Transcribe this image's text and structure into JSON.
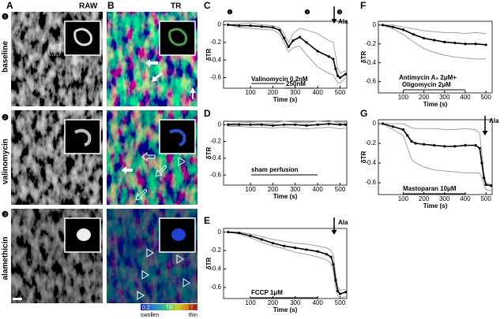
{
  "panel_labels": [
    "A",
    "B",
    "C",
    "D",
    "E",
    "F",
    "G"
  ],
  "column_headers": [
    "RAW",
    "TR"
  ],
  "row_labels": [
    {
      "marker": "❶",
      "label": "baseline"
    },
    {
      "marker": "❷",
      "label": "valinomycin"
    },
    {
      "marker": "❸",
      "label": "alamethicin"
    }
  ],
  "colorbar": {
    "min": 0.2,
    "mid": "TR",
    "max": 1.2,
    "low_label": "swollen",
    "high_label": "thin"
  },
  "chart_data": [
    {
      "type": "line",
      "xlabel": "Time (s)",
      "ylabel": "δTR",
      "xlim": [
        -20,
        530
      ],
      "ylim": [
        -0.72,
        0.04
      ],
      "xticks": [
        100,
        200,
        300,
        400,
        500
      ],
      "yticks": [
        0,
        -0.2,
        -0.4,
        -0.6
      ],
      "annotations": [
        "Valinomycin 0.2nM",
        "250nM",
        "❶",
        "❷",
        "❸",
        "Ala"
      ],
      "x": [
        0,
        50,
        100,
        150,
        200,
        230,
        250,
        270,
        290,
        320,
        350,
        400,
        450,
        470,
        480,
        490,
        500,
        525
      ],
      "series": [
        {
          "color": "#a0a0a0",
          "values": [
            0,
            0.01,
            0.02,
            0,
            -0.01,
            -0.03,
            -0.1,
            -0.2,
            -0.1,
            -0.04,
            -0.06,
            -0.1,
            -0.18,
            -0.2,
            -0.35,
            -0.5,
            -0.55,
            -0.52
          ]
        },
        {
          "color": "#a0a0a0",
          "values": [
            0,
            -0.03,
            -0.04,
            -0.05,
            -0.06,
            -0.1,
            -0.2,
            -0.31,
            -0.26,
            -0.24,
            -0.34,
            -0.48,
            -0.55,
            -0.57,
            -0.62,
            -0.66,
            -0.66,
            -0.6
          ]
        },
        {
          "color": "#000000",
          "values": [
            0,
            -0.01,
            -0.01,
            -0.02,
            -0.03,
            -0.06,
            -0.15,
            -0.25,
            -0.18,
            -0.14,
            -0.2,
            -0.3,
            -0.36,
            -0.39,
            -0.5,
            -0.58,
            -0.6,
            -0.56
          ]
        }
      ]
    },
    {
      "type": "line",
      "xlabel": "Time (s)",
      "ylabel": "δTR",
      "xlim": [
        -20,
        530
      ],
      "ylim": [
        -0.72,
        0.04
      ],
      "xticks": [
        100,
        200,
        300,
        400,
        500
      ],
      "yticks": [
        0,
        -0.2,
        -0.4,
        -0.6
      ],
      "annotations": [
        "sham perfusion"
      ],
      "x": [
        0,
        50,
        100,
        150,
        200,
        250,
        300,
        350,
        400,
        450,
        500,
        525
      ],
      "series": [
        {
          "color": "#a0a0a0",
          "values": [
            0.01,
            0.02,
            0.03,
            0.01,
            0.02,
            0.04,
            0.03,
            0.02,
            0.04,
            0.05,
            0.02,
            0.02
          ]
        },
        {
          "color": "#a0a0a0",
          "values": [
            -0.02,
            -0.02,
            -0.03,
            -0.03,
            -0.04,
            -0.03,
            -0.04,
            -0.05,
            -0.04,
            -0.03,
            -0.05,
            -0.04
          ]
        },
        {
          "color": "#000000",
          "values": [
            0,
            0,
            0,
            0,
            -0.01,
            0,
            0,
            -0.01,
            0,
            0.01,
            0,
            0
          ]
        }
      ]
    },
    {
      "type": "line",
      "xlabel": "Time (s)",
      "ylabel": "δTR",
      "xlim": [
        -20,
        530
      ],
      "ylim": [
        -0.72,
        0.04
      ],
      "xticks": [
        100,
        200,
        300,
        400,
        500
      ],
      "yticks": [
        0,
        -0.2,
        -0.4,
        -0.6
      ],
      "annotations": [
        "FCCP 1μM",
        "Ala"
      ],
      "x": [
        0,
        50,
        100,
        150,
        200,
        250,
        300,
        350,
        400,
        440,
        460,
        470,
        480,
        490,
        500,
        525
      ],
      "series": [
        {
          "color": "#a0a0a0",
          "values": [
            0,
            0,
            -0.02,
            -0.05,
            -0.08,
            -0.1,
            -0.12,
            -0.13,
            -0.15,
            -0.17,
            -0.2,
            -0.25,
            -0.45,
            -0.6,
            -0.63,
            -0.62
          ]
        },
        {
          "color": "#a0a0a0",
          "values": [
            0,
            -0.02,
            -0.06,
            -0.11,
            -0.15,
            -0.18,
            -0.22,
            -0.24,
            -0.27,
            -0.3,
            -0.34,
            -0.42,
            -0.6,
            -0.69,
            -0.71,
            -0.7
          ]
        },
        {
          "color": "#000000",
          "values": [
            0,
            -0.01,
            -0.04,
            -0.08,
            -0.12,
            -0.15,
            -0.17,
            -0.19,
            -0.21,
            -0.24,
            -0.27,
            -0.35,
            -0.52,
            -0.64,
            -0.67,
            -0.65
          ]
        }
      ]
    },
    {
      "type": "line",
      "xlabel": "Time (s)",
      "ylabel": "δTR",
      "xlim": [
        -20,
        530
      ],
      "ylim": [
        -0.72,
        0.04
      ],
      "xticks": [
        100,
        200,
        300,
        400,
        500
      ],
      "yticks": [
        0,
        -0.2,
        -0.4,
        -0.6
      ],
      "annotations": [
        "Antimycin A₃ 2μM+",
        "Oligomycin 2μM"
      ],
      "x": [
        0,
        50,
        100,
        150,
        200,
        250,
        300,
        350,
        400,
        450,
        500
      ],
      "series": [
        {
          "color": "#a0a0a0",
          "values": [
            0,
            0,
            -0.02,
            -0.04,
            -0.06,
            -0.07,
            -0.08,
            -0.08,
            -0.09,
            -0.08,
            -0.09
          ]
        },
        {
          "color": "#a0a0a0",
          "values": [
            0,
            -0.04,
            -0.1,
            -0.18,
            -0.25,
            -0.29,
            -0.32,
            -0.34,
            -0.35,
            -0.36,
            -0.36
          ]
        },
        {
          "color": "#000000",
          "values": [
            0,
            -0.02,
            -0.05,
            -0.1,
            -0.14,
            -0.16,
            -0.18,
            -0.19,
            -0.2,
            -0.2,
            -0.21
          ]
        }
      ]
    },
    {
      "type": "line",
      "xlabel": "Time (s)",
      "ylabel": "δTR",
      "xlim": [
        -20,
        530
      ],
      "ylim": [
        -0.72,
        0.04
      ],
      "xticks": [
        100,
        200,
        300,
        400,
        500
      ],
      "yticks": [
        0,
        -0.2,
        -0.4,
        -0.6
      ],
      "annotations": [
        "Ala",
        "Mastoparan 10μM"
      ],
      "x": [
        0,
        50,
        100,
        120,
        140,
        160,
        200,
        250,
        300,
        350,
        400,
        450,
        470,
        480,
        490,
        500,
        525
      ],
      "series": [
        {
          "color": "#a0a0a0",
          "values": [
            0,
            0,
            0,
            -0.02,
            -0.04,
            -0.05,
            -0.05,
            -0.05,
            -0.06,
            -0.06,
            -0.05,
            -0.06,
            -0.1,
            -0.3,
            -0.5,
            -0.6,
            -0.62
          ]
        },
        {
          "color": "#a0a0a0",
          "values": [
            0,
            -0.06,
            -0.12,
            -0.24,
            -0.36,
            -0.4,
            -0.44,
            -0.47,
            -0.48,
            -0.49,
            -0.5,
            -0.5,
            -0.5,
            -0.55,
            -0.62,
            -0.67,
            -0.68
          ]
        },
        {
          "color": "#000000",
          "values": [
            0,
            -0.03,
            -0.06,
            -0.12,
            -0.18,
            -0.2,
            -0.21,
            -0.22,
            -0.23,
            -0.23,
            -0.22,
            -0.22,
            -0.25,
            -0.4,
            -0.55,
            -0.62,
            -0.63
          ]
        }
      ]
    }
  ]
}
